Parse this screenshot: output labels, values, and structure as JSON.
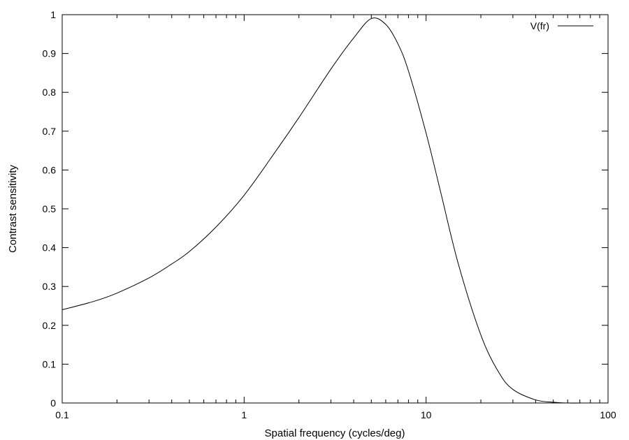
{
  "chart_data": {
    "type": "line",
    "title": "",
    "xlabel": "Spatial frequency (cycles/deg)",
    "ylabel": "Contrast sensitivity",
    "xscale": "log",
    "xlim": [
      0.1,
      100
    ],
    "ylim": [
      0,
      1
    ],
    "xticks": [
      {
        "value": 0.1,
        "label": "0.1"
      },
      {
        "value": 1,
        "label": "1"
      },
      {
        "value": 10,
        "label": "10"
      },
      {
        "value": 100,
        "label": "100"
      }
    ],
    "yticks": [
      {
        "value": 0,
        "label": "0"
      },
      {
        "value": 0.1,
        "label": "0.1"
      },
      {
        "value": 0.2,
        "label": "0.2"
      },
      {
        "value": 0.3,
        "label": "0.3"
      },
      {
        "value": 0.4,
        "label": "0.4"
      },
      {
        "value": 0.5,
        "label": "0.5"
      },
      {
        "value": 0.6,
        "label": "0.6"
      },
      {
        "value": 0.7,
        "label": "0.7"
      },
      {
        "value": 0.8,
        "label": "0.8"
      },
      {
        "value": 0.9,
        "label": "0.9"
      },
      {
        "value": 1,
        "label": "1"
      }
    ],
    "grid": false,
    "legend_position": "top-right",
    "series": [
      {
        "name": "V(fr)",
        "color": "#000000",
        "x": [
          0.1,
          0.15,
          0.2,
          0.3,
          0.4,
          0.5,
          0.7,
          1,
          1.5,
          2,
          3,
          4,
          5,
          6,
          7,
          8,
          10,
          12,
          15,
          20,
          25,
          30,
          40,
          50,
          60,
          80,
          100
        ],
        "y": [
          0.24,
          0.262,
          0.283,
          0.322,
          0.358,
          0.39,
          0.453,
          0.535,
          0.65,
          0.735,
          0.86,
          0.94,
          0.99,
          0.975,
          0.925,
          0.855,
          0.695,
          0.545,
          0.36,
          0.175,
          0.08,
          0.035,
          0.008,
          0.002,
          0.0,
          0.0,
          0.0
        ]
      }
    ]
  }
}
